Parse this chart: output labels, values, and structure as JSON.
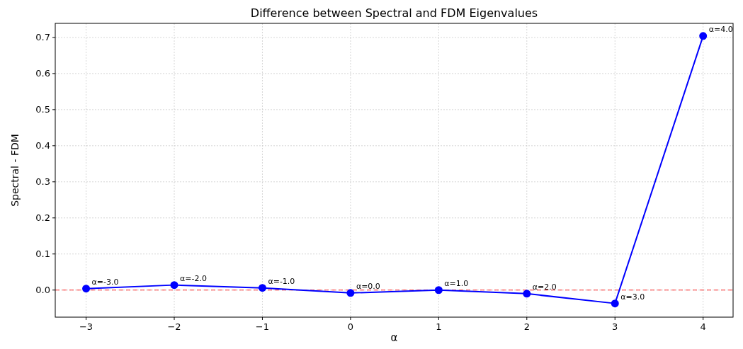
{
  "chart_data": {
    "type": "line",
    "title": "Difference between Spectral and FDM Eigenvalues",
    "xlabel": "α",
    "ylabel": "Spectral - FDM",
    "x": [
      -3,
      -2,
      -1,
      0,
      1,
      2,
      3,
      4
    ],
    "series": [
      {
        "color": "#0000ff",
        "values": [
          0.004,
          0.014,
          0.006,
          -0.008,
          0.0,
          -0.01,
          -0.037,
          0.704
        ]
      }
    ],
    "xlim": [
      -3.35,
      4.34
    ],
    "xticks": [
      {
        "value": -3,
        "label": "−3"
      },
      {
        "value": -2,
        "label": "−2"
      },
      {
        "value": -1,
        "label": "−1"
      },
      0,
      1,
      2,
      3,
      4
    ],
    "ylim": [
      -0.075,
      0.739
    ],
    "yticks": [
      {
        "value": 0,
        "label": "0.0"
      },
      0.1,
      0.2,
      0.3,
      0.4,
      0.5,
      0.6,
      0.7
    ],
    "grid": true,
    "marker": "circle",
    "line_style": "solid",
    "ref_lines": [
      {
        "axis": "y",
        "value": 0,
        "color": "#ff0000",
        "line_style": "dashed"
      }
    ],
    "annotations": [
      {
        "text": "α=-3.0",
        "x": -3,
        "y": 0.004
      },
      {
        "text": "α=-2.0",
        "x": -2,
        "y": 0.014
      },
      {
        "text": "α=-1.0",
        "x": -1,
        "y": 0.006
      },
      {
        "text": "α=0.0",
        "x": 0,
        "y": -0.008
      },
      {
        "text": "α=1.0",
        "x": 1,
        "y": 0.0
      },
      {
        "text": "α=2.0",
        "x": 2,
        "y": -0.01
      },
      {
        "text": "α=3.0",
        "x": 3,
        "y": -0.037
      },
      {
        "text": "α=4.0",
        "x": 4,
        "y": 0.704
      }
    ]
  }
}
